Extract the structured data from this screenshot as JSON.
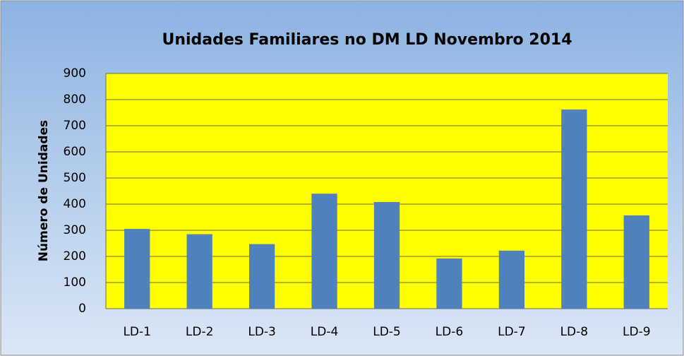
{
  "chart_data": {
    "type": "bar",
    "title": "Unidades Familiares no DM LD Novembro 2014",
    "y_label": "Número de Unidades",
    "categories": [
      "LD-1",
      "LD-2",
      "LD-3",
      "LD-4",
      "LD-5",
      "LD-6",
      "LD-7",
      "LD-8",
      "LD-9"
    ],
    "values": [
      305,
      285,
      247,
      440,
      408,
      192,
      222,
      762,
      357
    ],
    "color": "#4f81bd",
    "ylim": [
      0,
      900
    ],
    "yticks": [
      0,
      100,
      200,
      300,
      400,
      500,
      600,
      700,
      800,
      900
    ],
    "grid": true
  }
}
